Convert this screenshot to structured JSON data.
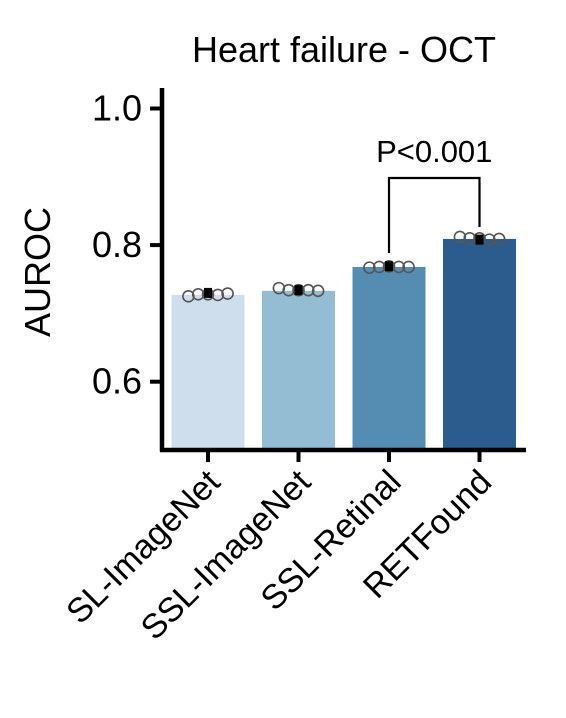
{
  "chart_data": {
    "type": "bar",
    "title": "Heart failure - OCT",
    "xlabel": "",
    "ylabel": "AUROC",
    "categories": [
      "SL-ImageNet",
      "SSL-ImageNet",
      "SSL-Retinal",
      "RETFound"
    ],
    "values": [
      0.727,
      0.733,
      0.768,
      0.809
    ],
    "mean_markers": [
      0.73,
      0.734,
      0.769,
      0.808
    ],
    "points": [
      [
        0.725,
        0.728,
        0.728,
        0.727,
        0.729
      ],
      [
        0.737,
        0.734,
        0.734,
        0.734,
        0.733
      ],
      [
        0.767,
        0.768,
        0.769,
        0.768,
        0.768
      ],
      [
        0.812,
        0.81,
        0.81,
        0.808,
        0.809
      ]
    ],
    "bar_colors": [
      "#cfdeed",
      "#94bcd3",
      "#558cb1",
      "#2c5b8e"
    ],
    "ylim": [
      0.5,
      1.03
    ],
    "yticks": [
      1.0,
      0.8,
      0.6
    ],
    "ytick_labels": [
      "1.0",
      "0.8",
      "0.6"
    ],
    "grid": false,
    "annotation": {
      "text": "P<0.001",
      "from_category": 2,
      "to_category": 3
    }
  }
}
